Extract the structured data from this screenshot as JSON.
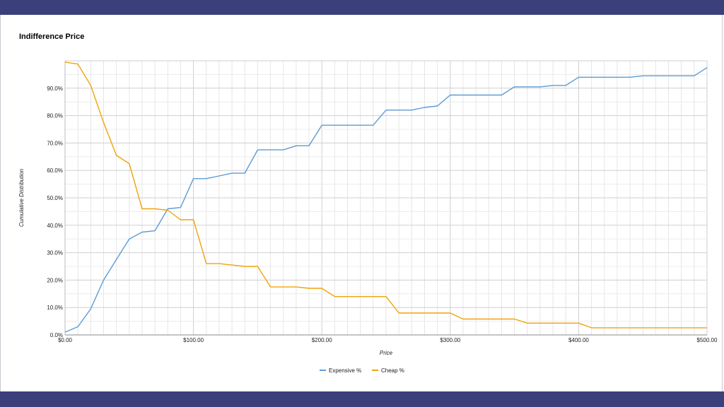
{
  "header": {
    "title": "Indifference Price"
  },
  "chart_data": {
    "type": "line",
    "title": "Indifference Price",
    "xlabel": "Price",
    "ylabel": "Cumulative Distribution",
    "xlim": [
      0,
      500
    ],
    "ylim": [
      0,
      100
    ],
    "x_ticks": [
      0,
      100,
      200,
      300,
      400,
      500
    ],
    "x_tick_labels": [
      "$0.00",
      "$100.00",
      "$200.00",
      "$300.00",
      "$400.00",
      "$500.00"
    ],
    "y_ticks": [
      0,
      10,
      20,
      30,
      40,
      50,
      60,
      70,
      80,
      90
    ],
    "y_tick_labels": [
      "0.0%",
      "10.0%",
      "20.0%",
      "30.0%",
      "40.0%",
      "50.0%",
      "60.0%",
      "70.0%",
      "80.0%",
      "90.0%"
    ],
    "grid": true,
    "legend_position": "bottom",
    "x": [
      0,
      10,
      20,
      30,
      40,
      50,
      60,
      70,
      80,
      90,
      100,
      110,
      120,
      130,
      140,
      150,
      160,
      170,
      180,
      190,
      200,
      210,
      220,
      230,
      240,
      250,
      260,
      270,
      280,
      290,
      300,
      310,
      320,
      330,
      340,
      350,
      360,
      370,
      380,
      390,
      400,
      410,
      420,
      430,
      440,
      450,
      460,
      470,
      480,
      490,
      500
    ],
    "series": [
      {
        "name": "Expensive %",
        "color": "#5b9bd5",
        "values": [
          1.0,
          3.0,
          9.5,
          20.0,
          27.5,
          35.0,
          37.5,
          38.0,
          46.0,
          46.5,
          57.0,
          57.0,
          58.0,
          59.0,
          59.0,
          67.5,
          67.5,
          67.5,
          69.0,
          69.0,
          76.5,
          76.5,
          76.5,
          76.5,
          76.5,
          82.0,
          82.0,
          82.0,
          83.0,
          83.5,
          87.5,
          87.5,
          87.5,
          87.5,
          87.5,
          90.5,
          90.5,
          90.5,
          91.0,
          91.0,
          94.0,
          94.0,
          94.0,
          94.0,
          94.0,
          94.5,
          94.5,
          94.5,
          94.5,
          94.5,
          97.5
        ]
      },
      {
        "name": "Cheap %",
        "color": "#f0a30a",
        "values": [
          99.5,
          98.8,
          91.0,
          77.5,
          65.5,
          62.5,
          46.0,
          46.0,
          45.5,
          42.0,
          42.0,
          26.0,
          26.0,
          25.5,
          25.0,
          25.0,
          17.5,
          17.5,
          17.5,
          17.0,
          17.0,
          14.0,
          14.0,
          14.0,
          14.0,
          14.0,
          8.0,
          8.0,
          8.0,
          8.0,
          8.0,
          5.8,
          5.8,
          5.8,
          5.8,
          5.8,
          4.3,
          4.3,
          4.3,
          4.3,
          4.3,
          2.6,
          2.6,
          2.6,
          2.6,
          2.6,
          2.6,
          2.6,
          2.6,
          2.6,
          2.6
        ]
      }
    ]
  }
}
